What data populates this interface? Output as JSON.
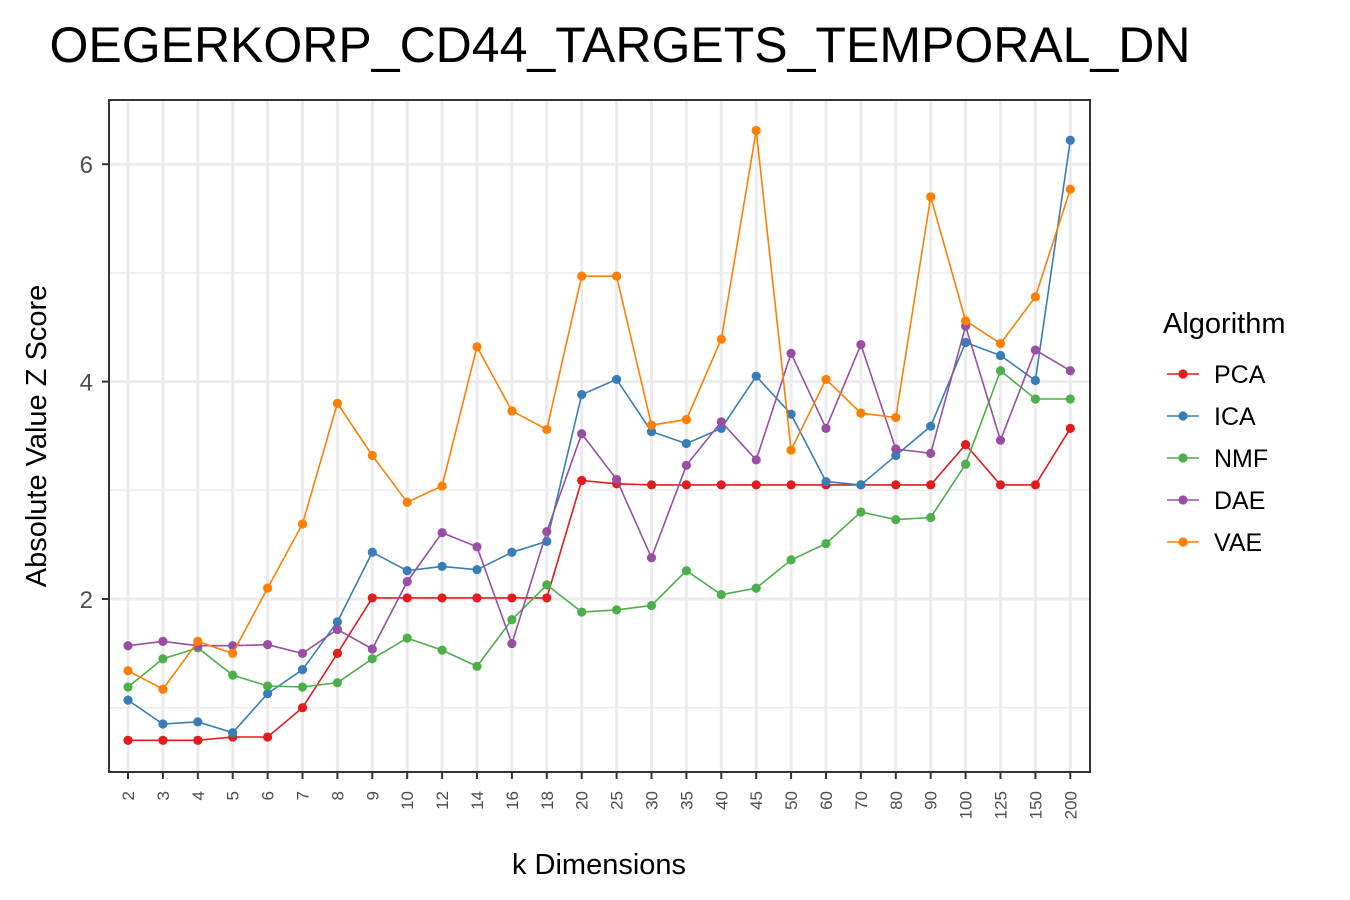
{
  "chart_data": {
    "type": "line",
    "title": "OEGERKORP_CD44_TARGETS_TEMPORAL_DN",
    "xlabel": "k Dimensions",
    "ylabel": "Absolute Value Z Score",
    "categories": [
      "2",
      "3",
      "4",
      "5",
      "6",
      "7",
      "8",
      "9",
      "10",
      "12",
      "14",
      "16",
      "18",
      "20",
      "25",
      "30",
      "35",
      "40",
      "45",
      "50",
      "60",
      "70",
      "80",
      "90",
      "100",
      "125",
      "150",
      "200"
    ],
    "y_ticks": [
      2,
      4,
      6
    ],
    "ylim": [
      0.5,
      6.6
    ],
    "grid": true,
    "legend": {
      "title": "Algorithm",
      "position": "right"
    },
    "series": [
      {
        "name": "PCA",
        "color": "#e41a1c",
        "values": [
          0.7,
          0.7,
          0.7,
          0.73,
          0.73,
          1.0,
          1.5,
          2.01,
          2.01,
          2.01,
          2.01,
          2.01,
          2.01,
          3.09,
          3.06,
          3.05,
          3.05,
          3.05,
          3.05,
          3.05,
          3.05,
          3.05,
          3.05,
          3.05,
          3.42,
          3.05,
          3.05,
          3.57
        ]
      },
      {
        "name": "ICA",
        "color": "#377eb8",
        "values": [
          1.07,
          0.85,
          0.87,
          0.77,
          1.13,
          1.35,
          1.79,
          2.43,
          2.26,
          2.3,
          2.27,
          2.43,
          2.53,
          3.88,
          4.02,
          3.54,
          3.43,
          3.57,
          4.05,
          3.7,
          3.08,
          3.05,
          3.32,
          3.59,
          4.36,
          4.24,
          4.01,
          6.22
        ]
      },
      {
        "name": "NMF",
        "color": "#4daf4a",
        "values": [
          1.19,
          1.45,
          1.55,
          1.3,
          1.2,
          1.19,
          1.23,
          1.45,
          1.64,
          1.53,
          1.38,
          1.81,
          2.13,
          1.88,
          1.9,
          1.94,
          2.26,
          2.04,
          2.1,
          2.36,
          2.51,
          2.8,
          2.73,
          2.75,
          3.24,
          4.1,
          3.84,
          3.84
        ]
      },
      {
        "name": "DAE",
        "color": "#984ea3",
        "values": [
          1.57,
          1.61,
          1.57,
          1.57,
          1.58,
          1.5,
          1.72,
          1.54,
          2.16,
          2.61,
          2.48,
          1.59,
          2.62,
          3.52,
          3.1,
          2.38,
          3.23,
          3.63,
          3.28,
          4.26,
          3.57,
          4.34,
          3.38,
          3.34,
          4.51,
          3.46,
          4.29,
          4.1
        ]
      },
      {
        "name": "VAE",
        "color": "#ff7f00",
        "values": [
          1.34,
          1.17,
          1.61,
          1.5,
          2.1,
          2.69,
          3.8,
          3.32,
          2.89,
          3.04,
          4.32,
          3.73,
          3.56,
          4.97,
          4.97,
          3.6,
          3.65,
          4.39,
          6.31,
          3.37,
          4.02,
          3.71,
          3.67,
          5.7,
          4.56,
          4.35,
          4.78,
          5.77
        ]
      }
    ]
  }
}
